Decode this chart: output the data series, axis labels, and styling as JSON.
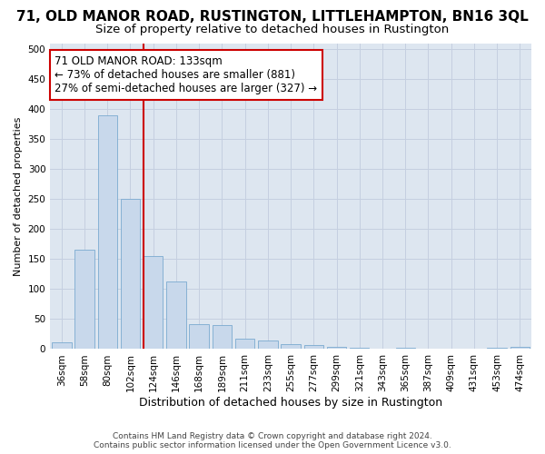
{
  "title": "71, OLD MANOR ROAD, RUSTINGTON, LITTLEHAMPTON, BN16 3QL",
  "subtitle": "Size of property relative to detached houses in Rustington",
  "xlabel": "Distribution of detached houses by size in Rustington",
  "ylabel": "Number of detached properties",
  "categories": [
    "36sqm",
    "58sqm",
    "80sqm",
    "102sqm",
    "124sqm",
    "146sqm",
    "168sqm",
    "189sqm",
    "211sqm",
    "233sqm",
    "255sqm",
    "277sqm",
    "299sqm",
    "321sqm",
    "343sqm",
    "365sqm",
    "387sqm",
    "409sqm",
    "431sqm",
    "453sqm",
    "474sqm"
  ],
  "values": [
    12,
    165,
    390,
    250,
    155,
    113,
    42,
    40,
    18,
    14,
    8,
    6,
    4,
    2,
    0,
    2,
    0,
    0,
    0,
    2,
    4
  ],
  "bar_color": "#c8d8eb",
  "bar_edge_color": "#7aaad0",
  "vline_color": "#cc0000",
  "vline_x": 4.0,
  "annotation_line1": "71 OLD MANOR ROAD: 133sqm",
  "annotation_line2": "← 73% of detached houses are smaller (881)",
  "annotation_line3": "27% of semi-detached houses are larger (327) →",
  "annotation_box_facecolor": "#ffffff",
  "annotation_box_edgecolor": "#cc0000",
  "ylim": [
    0,
    510
  ],
  "yticks": [
    0,
    50,
    100,
    150,
    200,
    250,
    300,
    350,
    400,
    450,
    500
  ],
  "grid_color": "#c5cfe0",
  "plot_bg_color": "#dde6f0",
  "footer": "Contains HM Land Registry data © Crown copyright and database right 2024.\nContains public sector information licensed under the Open Government Licence v3.0.",
  "title_fontsize": 11,
  "subtitle_fontsize": 9.5,
  "xlabel_fontsize": 9,
  "ylabel_fontsize": 8,
  "tick_fontsize": 7.5,
  "footer_fontsize": 6.5,
  "ann_fontsize": 8.5
}
